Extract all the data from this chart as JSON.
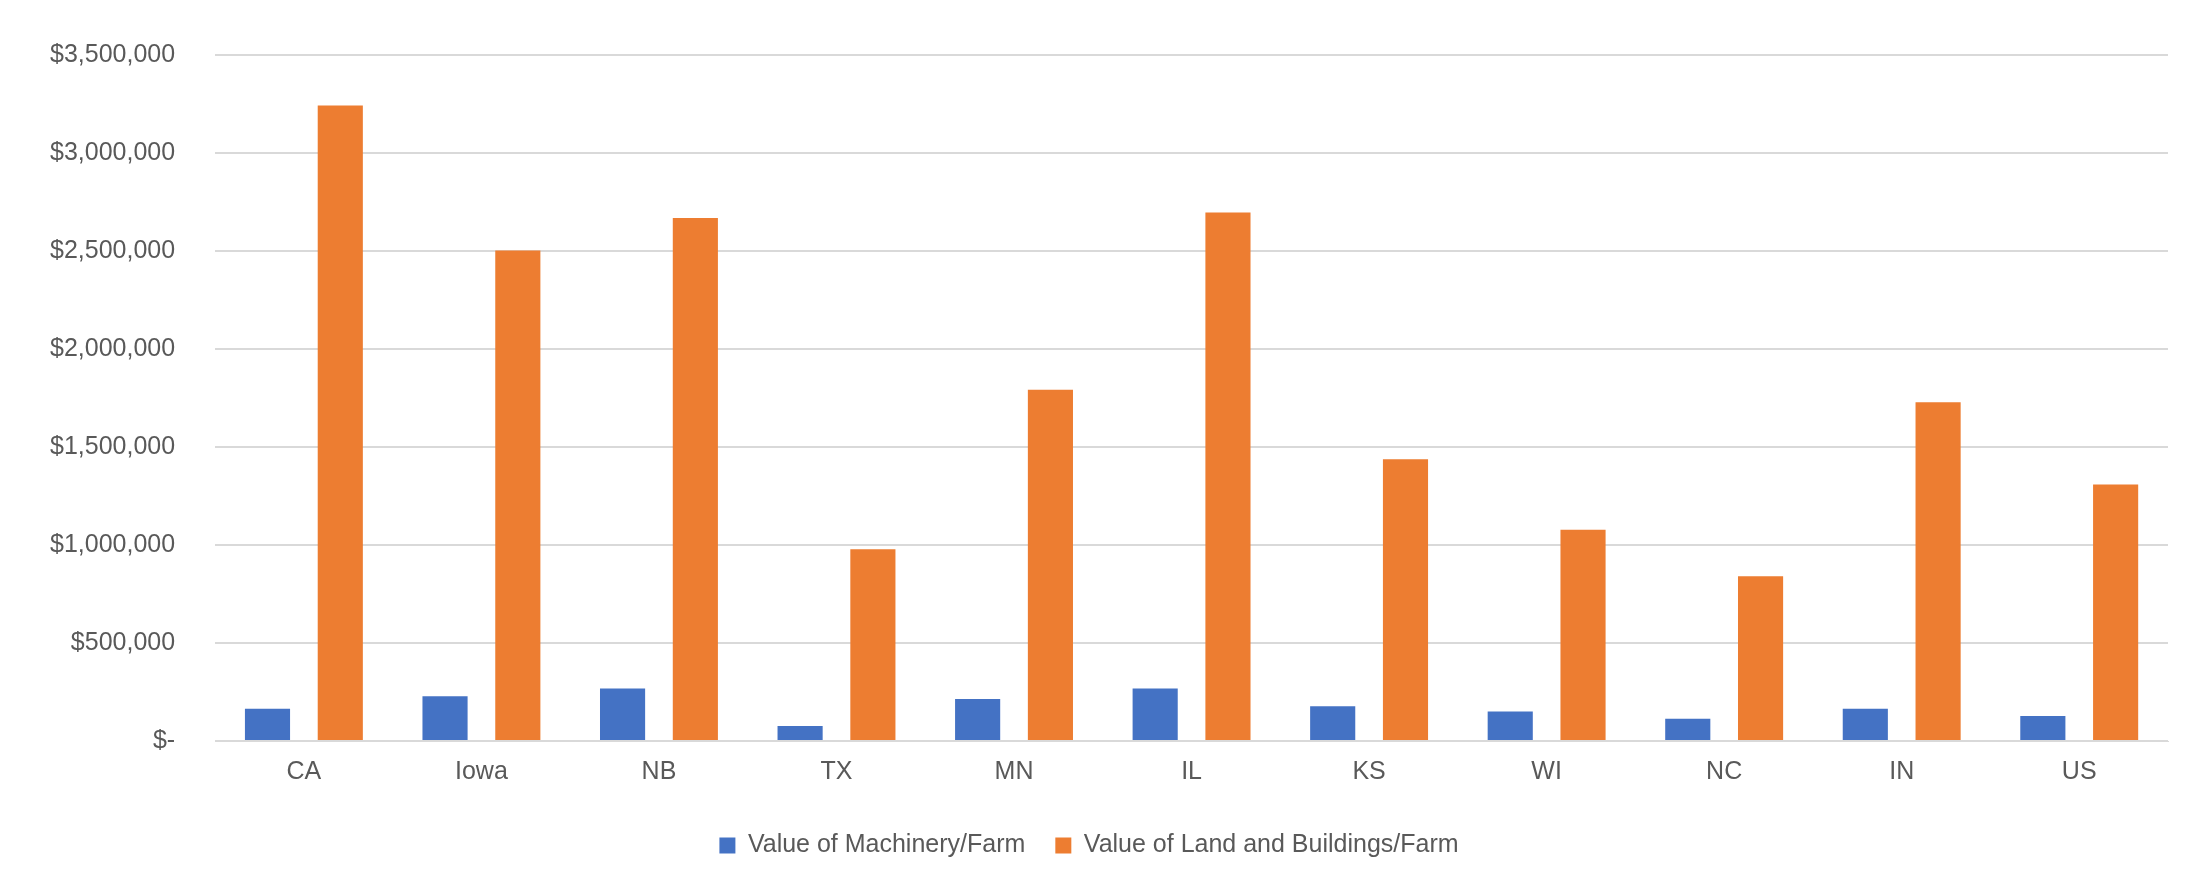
{
  "chart_data": {
    "type": "bar",
    "categories": [
      "CA",
      "Iowa",
      "NB",
      "TX",
      "MN",
      "IL",
      "KS",
      "WI",
      "NC",
      "IN",
      "US"
    ],
    "series": [
      {
        "name": "Value of Machinery/Farm",
        "color": "#4472c4",
        "values": [
          164000,
          228000,
          268000,
          77000,
          214000,
          268000,
          177000,
          151000,
          114000,
          164000,
          127000
        ]
      },
      {
        "name": "Value of Land and Buildings/Farm",
        "color": "#ed7d31",
        "values": [
          3242000,
          2502000,
          2669000,
          978000,
          1792000,
          2696000,
          1437000,
          1078000,
          841000,
          1728000,
          1309000
        ]
      }
    ],
    "ylim": [
      0,
      3500000
    ],
    "yticks": [
      {
        "value": 0,
        "label": "$-"
      },
      {
        "value": 500000,
        "label": "$500,000"
      },
      {
        "value": 1000000,
        "label": "$1,000,000"
      },
      {
        "value": 1500000,
        "label": "$1,500,000"
      },
      {
        "value": 2000000,
        "label": "$2,000,000"
      },
      {
        "value": 2500000,
        "label": "$2,500,000"
      },
      {
        "value": 3000000,
        "label": "$3,000,000"
      },
      {
        "value": 3500000,
        "label": "$3,500,000"
      }
    ],
    "grid": "y",
    "legend": "bottom"
  }
}
